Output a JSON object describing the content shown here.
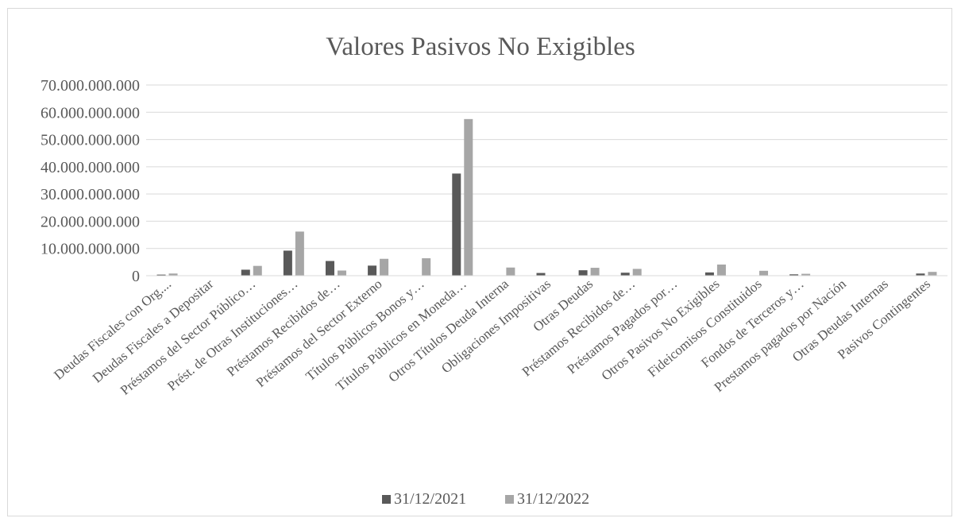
{
  "chart_data": {
    "type": "bar",
    "title": "Valores Pasivos  No Exigibles",
    "xlabel": "",
    "ylabel": "",
    "ylim": [
      0,
      70000000000
    ],
    "yticks": [
      0,
      10000000000,
      20000000000,
      30000000000,
      40000000000,
      50000000000,
      60000000000,
      70000000000
    ],
    "ytick_labels": [
      "0",
      "10.000.000.000",
      "20.000.000.000",
      "30.000.000.000",
      "40.000.000.000",
      "50.000.000.000",
      "60.000.000.000",
      "70.000.000.000"
    ],
    "grid": "horizontal",
    "legend_position": "bottom",
    "categories": [
      "Deudas Fiscales con Org....",
      "Deudas Fiscales a Depositar",
      "Préstamos del Sector Público…",
      "Prést. de Otras Instituciones…",
      "Préstamos Recibidos de…",
      "Préstamos del Sector Externo",
      "Títulos Públicos Bonos y…",
      "Títulos Públicos en Moneda…",
      "Otros Títulos Deuda Interna",
      "Obligaciones Impositivas",
      "Otras Deudas",
      "Préstamos Recibidos de…",
      "Préstamos Pagados por…",
      "Otros Pasivos No Exigibles",
      "Fideicomisos Constituidos",
      "Fondos de Terceros y…",
      "Prestamos pagados por Nación",
      "Otras Deudas Internas",
      "Pasivos Contingentes"
    ],
    "series": [
      {
        "name": "31/12/2021",
        "color": "#595959",
        "values": [
          400000000,
          0,
          2200000000,
          9200000000,
          5400000000,
          3700000000,
          0,
          37500000000,
          0,
          1000000000,
          2000000000,
          1100000000,
          0,
          1200000000,
          0,
          500000000,
          0,
          0,
          800000000
        ]
      },
      {
        "name": "31/12/2022",
        "color": "#a6a6a6",
        "values": [
          800000000,
          0,
          3600000000,
          16200000000,
          1900000000,
          6200000000,
          6400000000,
          57500000000,
          3000000000,
          0,
          2900000000,
          2500000000,
          0,
          4100000000,
          1800000000,
          700000000,
          0,
          0,
          1400000000
        ]
      }
    ]
  },
  "colors": {
    "gridline": "#d9d9d9",
    "text": "#595959",
    "border": "#d9d9d9"
  }
}
